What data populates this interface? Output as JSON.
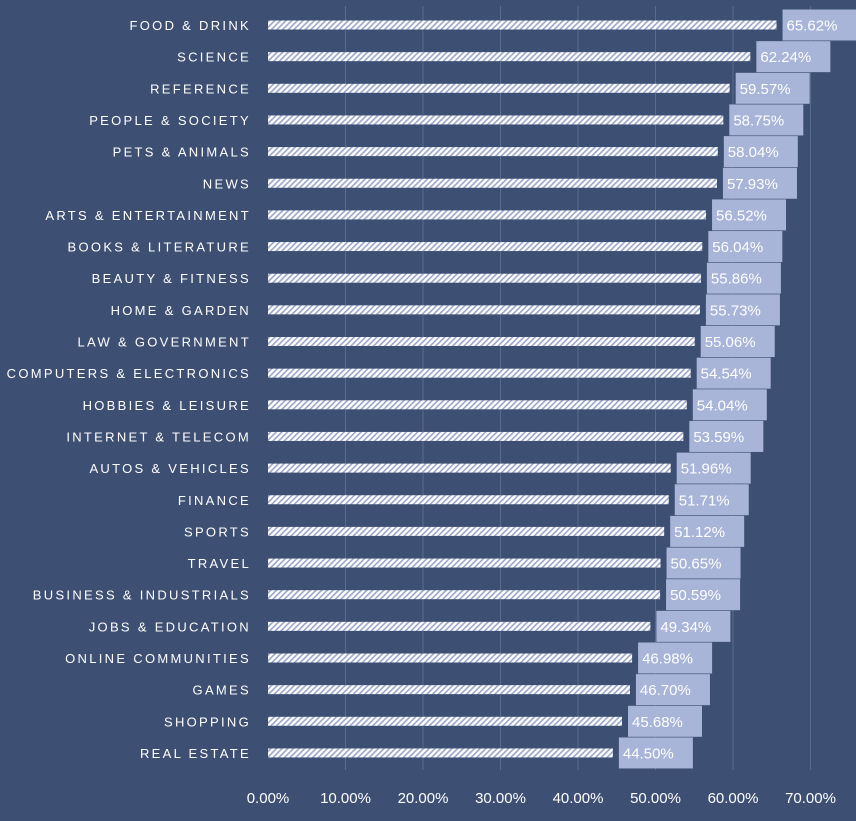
{
  "colors": {
    "background": "#3d4f73",
    "bar_fill": "#ffffff",
    "bar_stripe": "#9aa6c8",
    "label_box": "#a8b4d8",
    "gridline": "#5a6b8d",
    "text": "#ffffff"
  },
  "chart_data": {
    "type": "bar",
    "orientation": "horizontal",
    "title": "",
    "xlabel": "",
    "ylabel": "",
    "xlim": [
      0,
      70
    ],
    "grid": true,
    "ticks": [
      "0.00%",
      "10.00%",
      "20.00%",
      "30.00%",
      "40.00%",
      "50.00%",
      "60.00%",
      "70.00%"
    ],
    "tick_values": [
      0,
      10,
      20,
      30,
      40,
      50,
      60,
      70
    ],
    "categories": [
      "FOOD & DRINK",
      "SCIENCE",
      "REFERENCE",
      "PEOPLE & SOCIETY",
      "PETS & ANIMALS",
      "NEWS",
      "ARTS & ENTERTAINMENT",
      "BOOKS & LITERATURE",
      "BEAUTY & FITNESS",
      "HOME & GARDEN",
      "LAW & GOVERNMENT",
      "COMPUTERS & ELECTRONICS",
      "HOBBIES & LEISURE",
      "INTERNET & TELECOM",
      "AUTOS & VEHICLES",
      "FINANCE",
      "SPORTS",
      "TRAVEL",
      "BUSINESS & INDUSTRIALS",
      "JOBS & EDUCATION",
      "ONLINE COMMUNITIES",
      "GAMES",
      "SHOPPING",
      "REAL ESTATE"
    ],
    "values": [
      65.62,
      62.24,
      59.57,
      58.75,
      58.04,
      57.93,
      56.52,
      56.04,
      55.86,
      55.73,
      55.06,
      54.54,
      54.04,
      53.59,
      51.96,
      51.71,
      51.12,
      50.65,
      50.59,
      49.34,
      46.98,
      46.7,
      45.68,
      44.5
    ],
    "data_labels": [
      "65.62%",
      "62.24%",
      "59.57%",
      "58.75%",
      "58.04%",
      "57.93%",
      "56.52%",
      "56.04%",
      "55.86%",
      "55.73%",
      "55.06%",
      "54.54%",
      "54.04%",
      "53.59%",
      "51.96%",
      "51.71%",
      "51.12%",
      "50.65%",
      "50.59%",
      "49.34%",
      "46.98%",
      "46.70%",
      "45.68%",
      "44.50%"
    ]
  }
}
